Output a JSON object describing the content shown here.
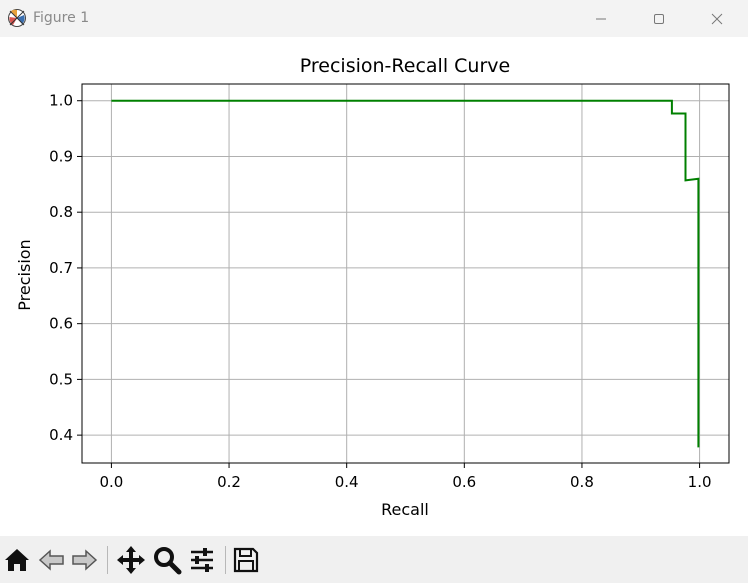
{
  "window": {
    "title": "Figure 1",
    "controls": [
      "minimize",
      "maximize",
      "close"
    ]
  },
  "toolbar": {
    "buttons": [
      {
        "icon": "home-icon",
        "action": "home"
      },
      {
        "icon": "back-arrow-icon",
        "action": "back"
      },
      {
        "icon": "forward-arrow-icon",
        "action": "forward"
      },
      {
        "icon": "pan-move-icon",
        "action": "pan"
      },
      {
        "icon": "zoom-magnifier-icon",
        "action": "zoom"
      },
      {
        "icon": "configure-subplots-icon",
        "action": "configure"
      },
      {
        "icon": "save-disk-icon",
        "action": "save"
      }
    ]
  },
  "chart_data": {
    "type": "line",
    "title": "Precision-Recall Curve",
    "xlabel": "Recall",
    "ylabel": "Precision",
    "xlim": [
      -0.05,
      1.05
    ],
    "ylim": [
      0.35,
      1.03
    ],
    "xticks": [
      0.0,
      0.2,
      0.4,
      0.6,
      0.8,
      1.0
    ],
    "xtick_labels": [
      "0.0",
      "0.2",
      "0.4",
      "0.6",
      "0.8",
      "1.0"
    ],
    "yticks": [
      0.4,
      0.5,
      0.6,
      0.7,
      0.8,
      0.9,
      1.0
    ],
    "ytick_labels": [
      "0.4",
      "0.5",
      "0.6",
      "0.7",
      "0.8",
      "0.9",
      "1.0"
    ],
    "grid": true,
    "line_color": "#008000",
    "series": [
      {
        "x": [
          0.0,
          0.953,
          0.953,
          0.976,
          0.976,
          0.998,
          0.998
        ],
        "y": [
          1.0,
          1.0,
          0.977,
          0.977,
          0.857,
          0.86,
          0.378
        ]
      }
    ]
  }
}
